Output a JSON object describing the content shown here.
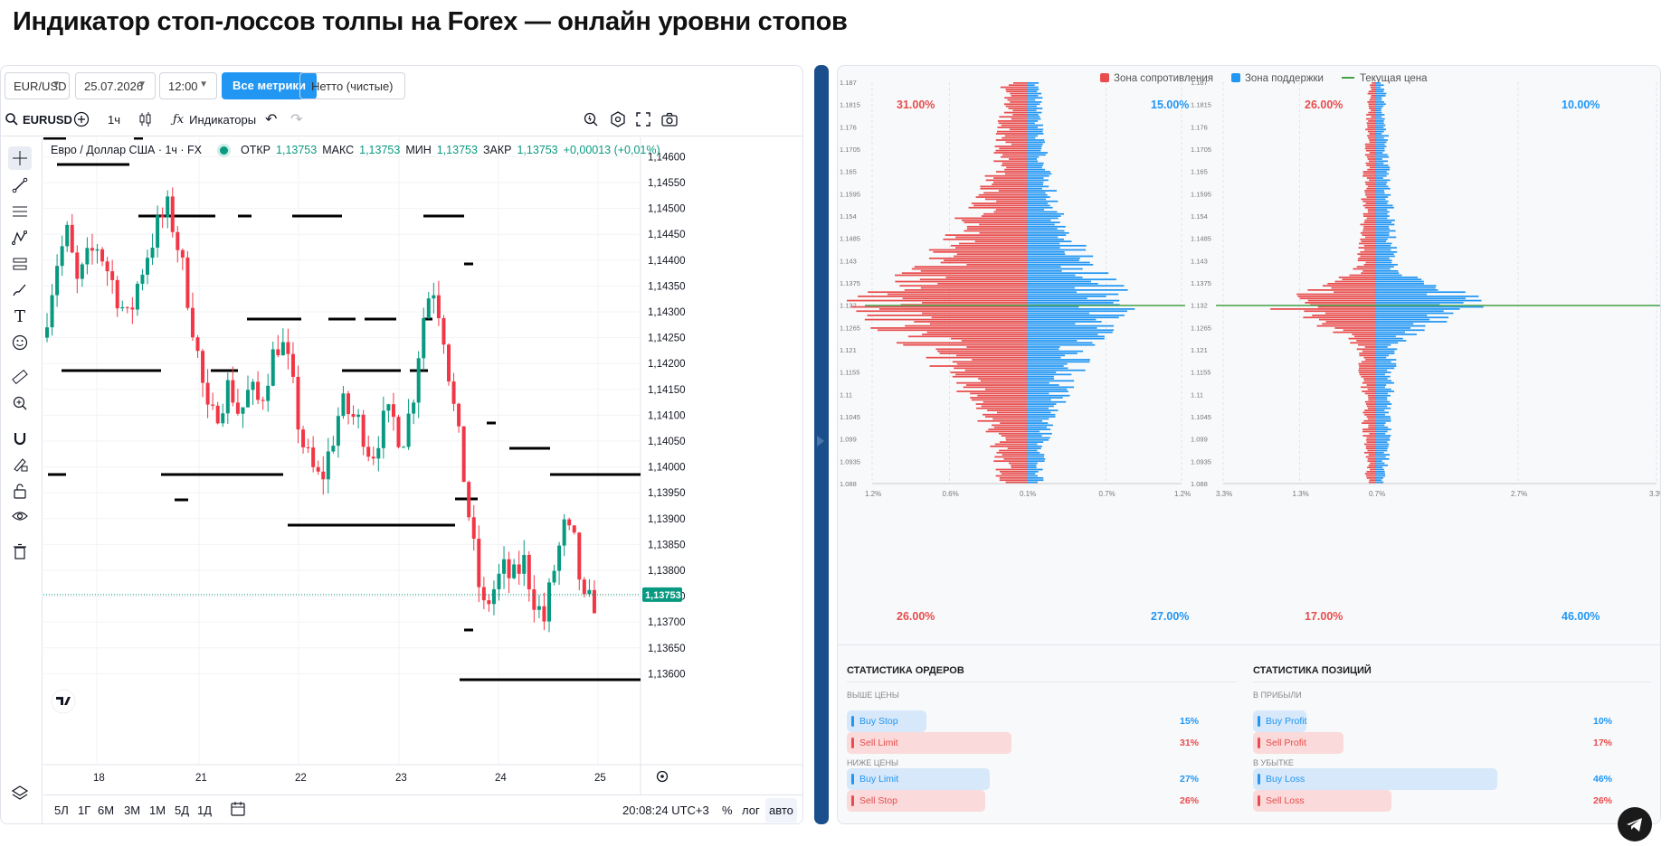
{
  "title": "Индикатор стоп-лоссов толпы на Forex — онлайн уровни стопов",
  "controls": {
    "pair": "EUR/USD",
    "date": "25.07.2026",
    "time": "12:00",
    "all_metrics": "Все метрики",
    "net": "Нетто (чистые)"
  },
  "tv": {
    "symbol": "EURUSD",
    "interval": "1ч",
    "indicators": "Индикаторы",
    "description": "Евро / Доллар США · 1ч · FX",
    "ohlc": {
      "o_label": "ОТКР",
      "o": "1,13753",
      "h_label": "МАКС",
      "h": "1,13753",
      "l_label": "МИН",
      "l": "1,13753",
      "c_label": "ЗАКР",
      "c": "1,13753",
      "change": "+0,00013 (+0,01%)"
    },
    "price_tag": "1,13753",
    "price_axis": [
      "1,14600",
      "1,14550",
      "1,14500",
      "1,14450",
      "1,14400",
      "1,14350",
      "1,14300",
      "1,14250",
      "1,14200",
      "1,14150",
      "1,14100",
      "1,14050",
      "1,14000",
      "1,13950",
      "1,13900",
      "1,13850",
      "1,13800",
      "1,13750",
      "1,13700",
      "1,13650",
      "1,13600"
    ],
    "time_axis": [
      "18",
      "21",
      "22",
      "23",
      "24",
      "25"
    ],
    "ranges": [
      "5Л",
      "1Г",
      "6М",
      "3М",
      "1М",
      "5Д",
      "1Д"
    ],
    "clock": "20:08:24 UTC+3",
    "percent": "%",
    "log": "лог",
    "auto": "авто",
    "colors": {
      "up": "#089981",
      "down": "#f23645"
    }
  },
  "book": {
    "legend": {
      "resistance": "Зона сопротивления",
      "support": "Зона поддержки",
      "current": "Текущая цена"
    },
    "colors": {
      "red": "#e84c4c",
      "blue": "#2196f3",
      "green": "#43a047"
    },
    "left": {
      "top_left": "31.00%",
      "top_right": "15.00%",
      "bottom_left": "26.00%",
      "bottom_right": "27.00%",
      "xaxis": [
        "1.2%",
        "0.6%",
        "0.1%",
        "0.7%",
        "1.2%"
      ]
    },
    "right": {
      "top_left": "26.00%",
      "top_right": "10.00%",
      "bottom_left": "17.00%",
      "bottom_right": "46.00%",
      "xaxis": [
        "3.3%",
        "1.3%",
        "0.7%",
        "2.7%",
        "3.3%"
      ]
    },
    "yaxis": [
      "1.187",
      "1.1815",
      "1.176",
      "1.1705",
      "1.165",
      "1.1595",
      "1.154",
      "1.1485",
      "1.143",
      "1.1375",
      "1.132",
      "1.1265",
      "1.121",
      "1.1155",
      "1.11",
      "1.1045",
      "1.099",
      "1.0935",
      "1.088"
    ]
  },
  "stats": {
    "orders": {
      "title": "СТАТИСТИКА ОРДЕРОВ",
      "above": "ВЫШЕ ЦЕНЫ",
      "below": "НИЖЕ ЦЕНЫ",
      "rows": [
        {
          "label": "Buy Stop",
          "value": "15%",
          "pct": 15,
          "kind": "buy"
        },
        {
          "label": "Sell Limit",
          "value": "31%",
          "pct": 31,
          "kind": "sell"
        },
        {
          "label": "Buy Limit",
          "value": "27%",
          "pct": 27,
          "kind": "buy"
        },
        {
          "label": "Sell Stop",
          "value": "26%",
          "pct": 26,
          "kind": "sell"
        }
      ]
    },
    "positions": {
      "title": "СТАТИСТИКА ПОЗИЦИЙ",
      "profit": "В ПРИБЫЛИ",
      "loss": "В УБЫТКЕ",
      "rows": [
        {
          "label": "Buy Profit",
          "value": "10%",
          "pct": 10,
          "kind": "buy"
        },
        {
          "label": "Sell Profit",
          "value": "17%",
          "pct": 17,
          "kind": "sell"
        },
        {
          "label": "Buy Loss",
          "value": "46%",
          "pct": 46,
          "kind": "buy"
        },
        {
          "label": "Sell Loss",
          "value": "26%",
          "pct": 26,
          "kind": "sell"
        }
      ]
    }
  }
}
